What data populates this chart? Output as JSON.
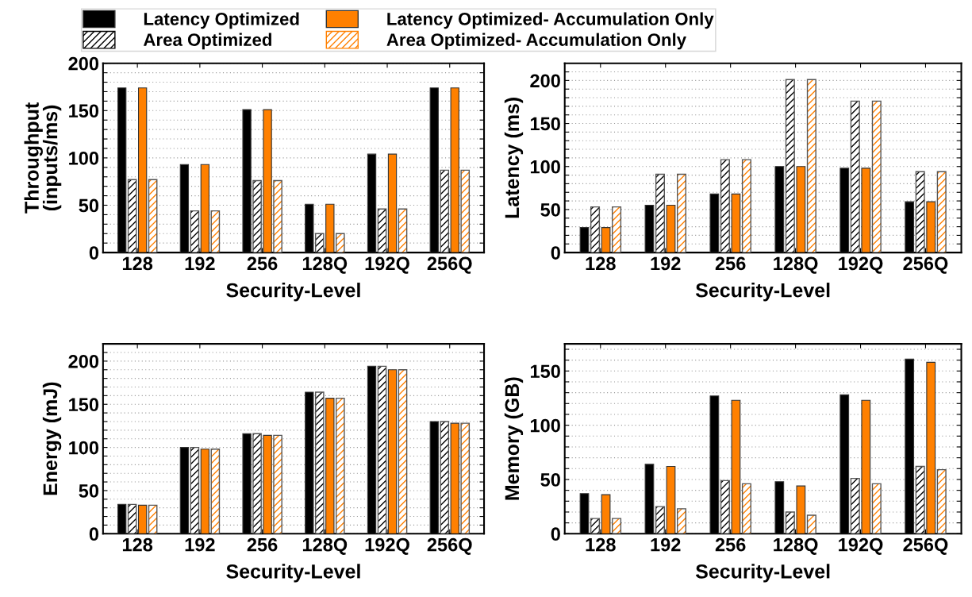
{
  "chart_data": [
    {
      "type": "bar",
      "ylabel": "Throughput\n(inputs/ms)",
      "xlabel": "Security-Level",
      "categories": [
        "128",
        "192",
        "256",
        "128Q",
        "192Q",
        "256Q"
      ],
      "ylim": [
        0,
        200
      ],
      "yticks": [
        0,
        {
          "value": 10,
          "label": null
        },
        {
          "value": 20,
          "label": null
        },
        {
          "value": 30,
          "label": null
        },
        {
          "value": 40,
          "label": null
        },
        50,
        {
          "value": 60,
          "label": null
        },
        {
          "value": 70,
          "label": null
        },
        {
          "value": 80,
          "label": null
        },
        {
          "value": 90,
          "label": null
        },
        100,
        {
          "value": 110,
          "label": null
        },
        {
          "value": 120,
          "label": null
        },
        {
          "value": 130,
          "label": null
        },
        {
          "value": 140,
          "label": null
        },
        150,
        {
          "value": 160,
          "label": null
        },
        {
          "value": 170,
          "label": null
        },
        {
          "value": 180,
          "label": null
        },
        {
          "value": 190,
          "label": null
        },
        200
      ],
      "grid": "y",
      "legend": "top",
      "series": [
        {
          "name": "Latency Optimized",
          "color": "#000000",
          "values": [
            174,
            93,
            151,
            51,
            104,
            174
          ]
        },
        {
          "name": "Area Optimized",
          "color": "#000000",
          "values": [
            77,
            44,
            76,
            20,
            46,
            87
          ]
        },
        {
          "name": "Latency Optimized- Accumulation Only",
          "color": "#ff8000",
          "values": [
            174,
            93,
            151,
            51,
            104,
            174
          ]
        },
        {
          "name": "Area Optimized- Accumulation Only",
          "color": "#ff8000",
          "values": [
            77,
            44,
            76,
            20,
            46,
            87
          ]
        }
      ]
    },
    {
      "type": "bar",
      "ylabel": "Latency (ms)",
      "xlabel": "Security-Level",
      "categories": [
        "128",
        "192",
        "256",
        "128Q",
        "192Q",
        "256Q"
      ],
      "ylim": [
        0,
        220
      ],
      "yticks": [
        0,
        {
          "value": 10,
          "label": null
        },
        {
          "value": 20,
          "label": null
        },
        {
          "value": 30,
          "label": null
        },
        {
          "value": 40,
          "label": null
        },
        50,
        {
          "value": 60,
          "label": null
        },
        {
          "value": 70,
          "label": null
        },
        {
          "value": 80,
          "label": null
        },
        {
          "value": 90,
          "label": null
        },
        100,
        {
          "value": 110,
          "label": null
        },
        {
          "value": 120,
          "label": null
        },
        {
          "value": 130,
          "label": null
        },
        {
          "value": 140,
          "label": null
        },
        150,
        {
          "value": 160,
          "label": null
        },
        {
          "value": 170,
          "label": null
        },
        {
          "value": 180,
          "label": null
        },
        {
          "value": 190,
          "label": null
        },
        200,
        {
          "value": 210,
          "label": null
        }
      ],
      "grid": "y",
      "series": [
        {
          "color": "#000000",
          "values": [
            29,
            55,
            68,
            100,
            98,
            59
          ]
        },
        {
          "color": "#000000",
          "values": [
            53,
            91,
            108,
            201,
            176,
            94
          ]
        },
        {
          "color": "#ff8000",
          "values": [
            29,
            55,
            68,
            100,
            98,
            59
          ]
        },
        {
          "color": "#ff8000",
          "values": [
            53,
            91,
            108,
            201,
            176,
            94
          ]
        }
      ]
    },
    {
      "type": "bar",
      "ylabel": "Energy (mJ)",
      "xlabel": "Security-Level",
      "categories": [
        "128",
        "192",
        "256",
        "128Q",
        "192Q",
        "256Q"
      ],
      "ylim": [
        0,
        220
      ],
      "yticks": [
        0,
        {
          "value": 10,
          "label": null
        },
        {
          "value": 20,
          "label": null
        },
        {
          "value": 30,
          "label": null
        },
        {
          "value": 40,
          "label": null
        },
        50,
        {
          "value": 60,
          "label": null
        },
        {
          "value": 70,
          "label": null
        },
        {
          "value": 80,
          "label": null
        },
        {
          "value": 90,
          "label": null
        },
        100,
        {
          "value": 110,
          "label": null
        },
        {
          "value": 120,
          "label": null
        },
        {
          "value": 130,
          "label": null
        },
        {
          "value": 140,
          "label": null
        },
        150,
        {
          "value": 160,
          "label": null
        },
        {
          "value": 170,
          "label": null
        },
        {
          "value": 180,
          "label": null
        },
        {
          "value": 190,
          "label": null
        },
        200,
        {
          "value": 210,
          "label": null
        }
      ],
      "grid": "y",
      "series": [
        {
          "color": "#000000",
          "values": [
            34,
            100,
            116,
            164,
            194,
            130
          ]
        },
        {
          "color": "#000000",
          "values": [
            34,
            100,
            116,
            164,
            194,
            130
          ]
        },
        {
          "color": "#ff8000",
          "values": [
            33,
            98,
            114,
            157,
            190,
            128
          ]
        },
        {
          "color": "#ff8000",
          "values": [
            33,
            98,
            114,
            157,
            190,
            128
          ]
        }
      ]
    },
    {
      "type": "bar",
      "ylabel": "Memory (GB)",
      "xlabel": "Security-Level",
      "categories": [
        "128",
        "192",
        "256",
        "128Q",
        "192Q",
        "256Q"
      ],
      "ylim": [
        0,
        175
      ],
      "yticks": [
        0,
        {
          "value": 10,
          "label": null
        },
        {
          "value": 20,
          "label": null
        },
        {
          "value": 30,
          "label": null
        },
        {
          "value": 40,
          "label": null
        },
        50,
        {
          "value": 60,
          "label": null
        },
        {
          "value": 70,
          "label": null
        },
        {
          "value": 80,
          "label": null
        },
        {
          "value": 90,
          "label": null
        },
        100,
        {
          "value": 110,
          "label": null
        },
        {
          "value": 120,
          "label": null
        },
        {
          "value": 130,
          "label": null
        },
        {
          "value": 140,
          "label": null
        },
        150,
        {
          "value": 160,
          "label": null
        },
        {
          "value": 170,
          "label": null
        }
      ],
      "grid": "y",
      "series": [
        {
          "color": "#000000",
          "values": [
            37,
            64,
            127,
            48,
            128,
            161
          ]
        },
        {
          "color": "#000000",
          "values": [
            14,
            25,
            49,
            20,
            51,
            62
          ]
        },
        {
          "color": "#ff8000",
          "values": [
            36,
            62,
            123,
            44,
            123,
            158
          ]
        },
        {
          "color": "#ff8000",
          "values": [
            14,
            23,
            46,
            17,
            46,
            59
          ]
        }
      ]
    }
  ]
}
